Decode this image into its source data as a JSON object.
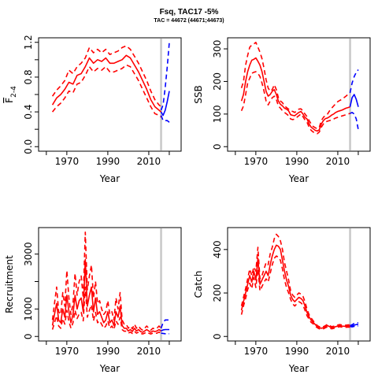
{
  "page": {
    "title": "Fsq, TAC17 -5%",
    "subtitle": "TAC = 44672 (44671;44673)"
  },
  "chart_data": [
    {
      "type": "line",
      "name": "fbar",
      "xlabel": "Year",
      "ylabel_main": "F",
      "ylabel_sub": "2-4",
      "xlim": [
        1959,
        2023
      ],
      "ylim": [
        0,
        1.2
      ],
      "xticks": [
        1970,
        1990,
        2010
      ],
      "yticks": [
        0.0,
        0.4,
        0.8,
        1.2
      ],
      "ytick_labels": [
        "0.0",
        "0.4",
        "0.8",
        "1.2"
      ],
      "vline_x": 2016,
      "colors": {
        "history": "#ff0000",
        "projection": "#0000ff",
        "vline": "#c8c8c8"
      },
      "history": {
        "x": [
          1963,
          1965,
          1967,
          1969,
          1971,
          1973,
          1975,
          1977,
          1979,
          1981,
          1983,
          1985,
          1987,
          1989,
          1991,
          1993,
          1995,
          1997,
          1999,
          2001,
          2003,
          2005,
          2007,
          2009,
          2011,
          2013,
          2015,
          2016
        ],
        "mid": [
          0.48,
          0.56,
          0.6,
          0.66,
          0.74,
          0.72,
          0.82,
          0.84,
          0.92,
          1.02,
          0.96,
          1.0,
          0.98,
          1.02,
          0.96,
          0.96,
          0.98,
          1.0,
          1.05,
          1.02,
          0.94,
          0.86,
          0.76,
          0.66,
          0.54,
          0.46,
          0.42,
          0.4
        ],
        "upper": [
          0.58,
          0.65,
          0.7,
          0.76,
          0.88,
          0.84,
          0.92,
          0.96,
          1.02,
          1.14,
          1.08,
          1.12,
          1.08,
          1.12,
          1.06,
          1.08,
          1.1,
          1.14,
          1.16,
          1.12,
          1.04,
          0.96,
          0.86,
          0.76,
          0.64,
          0.54,
          0.48,
          0.46
        ],
        "lower": [
          0.4,
          0.46,
          0.5,
          0.56,
          0.64,
          0.62,
          0.72,
          0.74,
          0.82,
          0.92,
          0.86,
          0.9,
          0.88,
          0.92,
          0.86,
          0.86,
          0.88,
          0.9,
          0.94,
          0.92,
          0.84,
          0.76,
          0.66,
          0.56,
          0.46,
          0.38,
          0.36,
          0.34
        ]
      },
      "projection": {
        "x": [
          2016,
          2017,
          2018,
          2019,
          2020
        ],
        "mid": [
          0.4,
          0.36,
          0.42,
          0.52,
          0.64
        ],
        "upper": [
          0.42,
          0.48,
          0.68,
          0.92,
          1.2
        ],
        "lower": [
          0.36,
          0.3,
          0.3,
          0.3,
          0.28
        ]
      }
    },
    {
      "type": "line",
      "name": "ssb",
      "xlabel": "Year",
      "ylabel_main": "SSB",
      "xlim": [
        1959,
        2023
      ],
      "ylim": [
        0,
        320
      ],
      "xticks": [
        1970,
        1990,
        2010
      ],
      "yticks": [
        0,
        100,
        200,
        300
      ],
      "ytick_labels": [
        "0",
        "100",
        "200",
        "300"
      ],
      "vline_x": 2016,
      "colors": {
        "history": "#ff0000",
        "projection": "#0000ff",
        "vline": "#c8c8c8"
      },
      "history": {
        "x": [
          1963,
          1964,
          1965,
          1966,
          1967,
          1968,
          1969,
          1970,
          1971,
          1972,
          1973,
          1974,
          1975,
          1976,
          1977,
          1978,
          1979,
          1980,
          1981,
          1982,
          1983,
          1984,
          1985,
          1986,
          1987,
          1988,
          1989,
          1990,
          1991,
          1992,
          1993,
          1994,
          1995,
          1996,
          1997,
          1998,
          1999,
          2000,
          2001,
          2002,
          2003,
          2004,
          2005,
          2006,
          2007,
          2008,
          2009,
          2010,
          2011,
          2012,
          2013,
          2014,
          2015,
          2016
        ],
        "mid": [
          140,
          160,
          200,
          230,
          250,
          265,
          268,
          272,
          262,
          250,
          230,
          200,
          170,
          155,
          160,
          170,
          175,
          160,
          140,
          130,
          125,
          118,
          115,
          110,
          98,
          96,
          95,
          100,
          105,
          108,
          100,
          90,
          85,
          70,
          60,
          55,
          50,
          48,
          52,
          70,
          80,
          86,
          88,
          92,
          97,
          100,
          105,
          108,
          110,
          112,
          115,
          118,
          120,
          122
        ],
        "upper": [
          180,
          200,
          250,
          280,
          305,
          312,
          315,
          320,
          305,
          290,
          270,
          240,
          205,
          180,
          170,
          175,
          190,
          175,
          150,
          140,
          135,
          125,
          120,
          115,
          110,
          108,
          105,
          110,
          115,
          116,
          110,
          100,
          92,
          80,
          70,
          62,
          58,
          55,
          60,
          80,
          90,
          96,
          100,
          110,
          118,
          125,
          132,
          138,
          142,
          145,
          150,
          155,
          160,
          165
        ],
        "lower": [
          110,
          125,
          160,
          195,
          210,
          225,
          228,
          230,
          225,
          215,
          195,
          170,
          140,
          128,
          140,
          150,
          155,
          145,
          125,
          118,
          110,
          105,
          100,
          95,
          85,
          83,
          85,
          90,
          95,
          100,
          92,
          82,
          75,
          60,
          50,
          45,
          42,
          40,
          45,
          60,
          70,
          76,
          78,
          80,
          82,
          85,
          88,
          90,
          92,
          94,
          96,
          98,
          100,
          102
        ]
      },
      "projection": {
        "x": [
          2016,
          2017,
          2018,
          2019,
          2020
        ],
        "mid": [
          122,
          150,
          160,
          145,
          122
        ],
        "upper": [
          165,
          195,
          215,
          228,
          236
        ],
        "lower": [
          102,
          105,
          100,
          85,
          52
        ]
      }
    },
    {
      "type": "line",
      "name": "recruitment",
      "xlabel": "Year",
      "ylabel_main": "Recruitment",
      "xlim": [
        1959,
        2023
      ],
      "ylim": [
        0,
        3800
      ],
      "xticks": [
        1970,
        1990,
        2010
      ],
      "yticks": [
        0,
        1000,
        3000
      ],
      "ytick_labels": [
        "0",
        "1000",
        "3000"
      ],
      "vline_x": 2016,
      "colors": {
        "history": "#ff0000",
        "projection": "#0000ff",
        "vline": "#c8c8c8"
      },
      "history": {
        "x": [
          1963,
          1964,
          1965,
          1966,
          1967,
          1968,
          1969,
          1970,
          1971,
          1972,
          1973,
          1974,
          1975,
          1976,
          1977,
          1978,
          1979,
          1980,
          1981,
          1982,
          1983,
          1984,
          1985,
          1986,
          1987,
          1988,
          1989,
          1990,
          1991,
          1992,
          1993,
          1994,
          1995,
          1996,
          1997,
          1998,
          1999,
          2000,
          2001,
          2002,
          2003,
          2004,
          2005,
          2006,
          2007,
          2008,
          2009,
          2010,
          2011,
          2012,
          2013,
          2014,
          2015,
          2016
        ],
        "mid": [
          400,
          800,
          1200,
          600,
          500,
          1000,
          700,
          1500,
          900,
          500,
          800,
          1500,
          1000,
          1300,
          1400,
          900,
          2800,
          1100,
          1500,
          1800,
          900,
          1400,
          800,
          900,
          700,
          500,
          600,
          900,
          500,
          600,
          400,
          900,
          700,
          1100,
          400,
          300,
          300,
          200,
          250,
          180,
          300,
          200,
          250,
          180,
          150,
          200,
          250,
          200,
          150,
          200,
          180,
          200,
          250,
          200
        ],
        "upper": [
          600,
          1200,
          1800,
          900,
          800,
          1600,
          1100,
          2400,
          1400,
          800,
          1200,
          2300,
          1500,
          2000,
          2200,
          1400,
          3800,
          1700,
          2200,
          2600,
          1400,
          2000,
          1200,
          1300,
          1000,
          800,
          900,
          1300,
          800,
          900,
          600,
          1400,
          1000,
          1600,
          600,
          450,
          450,
          300,
          380,
          280,
          450,
          300,
          380,
          280,
          230,
          300,
          380,
          300,
          230,
          300,
          270,
          300,
          380,
          300
        ],
        "lower": [
          250,
          500,
          750,
          380,
          300,
          650,
          450,
          950,
          550,
          300,
          500,
          950,
          650,
          820,
          880,
          570,
          1800,
          700,
          950,
          1150,
          570,
          880,
          500,
          570,
          440,
          300,
          380,
          570,
          300,
          380,
          250,
          570,
          440,
          700,
          250,
          190,
          190,
          120,
          160,
          110,
          190,
          120,
          160,
          110,
          90,
          120,
          160,
          120,
          90,
          120,
          110,
          120,
          160,
          120
        ]
      },
      "projection": {
        "x": [
          2016,
          2017,
          2018,
          2019,
          2020
        ],
        "mid": [
          200,
          240,
          250,
          250,
          250
        ],
        "upper": [
          300,
          500,
          600,
          600,
          600
        ],
        "lower": [
          120,
          110,
          100,
          100,
          100
        ]
      }
    },
    {
      "type": "line",
      "name": "catch",
      "xlabel": "Year",
      "ylabel_main": "Catch",
      "xlim": [
        1959,
        2023
      ],
      "ylim": [
        0,
        480
      ],
      "xticks": [
        1970,
        1990,
        2010
      ],
      "yticks": [
        0,
        200,
        400
      ],
      "ytick_labels": [
        "0",
        "200",
        "400"
      ],
      "vline_x": 2016,
      "colors": {
        "history": "#ff0000",
        "projection": "#0000ff",
        "vline": "#c8c8c8"
      },
      "history": {
        "x": [
          1963,
          1964,
          1965,
          1966,
          1967,
          1968,
          1969,
          1970,
          1971,
          1972,
          1973,
          1974,
          1975,
          1976,
          1977,
          1978,
          1979,
          1980,
          1981,
          1982,
          1983,
          1984,
          1985,
          1986,
          1987,
          1988,
          1989,
          1990,
          1991,
          1992,
          1993,
          1994,
          1995,
          1996,
          1997,
          1998,
          1999,
          2000,
          2001,
          2002,
          2003,
          2004,
          2005,
          2006,
          2007,
          2008,
          2009,
          2010,
          2011,
          2012,
          2013,
          2014,
          2015,
          2016
        ],
        "mid": [
          120,
          160,
          200,
          240,
          280,
          250,
          300,
          260,
          360,
          240,
          260,
          280,
          300,
          280,
          330,
          370,
          400,
          420,
          415,
          400,
          350,
          300,
          260,
          230,
          190,
          170,
          160,
          170,
          180,
          175,
          165,
          140,
          110,
          90,
          75,
          65,
          55,
          45,
          40,
          38,
          40,
          45,
          50,
          45,
          40,
          42,
          45,
          48,
          50,
          48,
          47,
          47,
          48,
          48
        ],
        "upper": [
          140,
          180,
          220,
          265,
          310,
          280,
          320,
          300,
          410,
          265,
          280,
          310,
          340,
          330,
          380,
          410,
          450,
          470,
          460,
          440,
          400,
          340,
          300,
          260,
          210,
          190,
          180,
          190,
          200,
          195,
          185,
          160,
          125,
          100,
          85,
          72,
          62,
          50,
          45,
          42,
          45,
          50,
          56,
          50,
          45,
          47,
          50,
          53,
          55,
          53,
          52,
          52,
          53,
          53
        ],
        "lower": [
          100,
          140,
          175,
          215,
          245,
          220,
          270,
          225,
          310,
          210,
          230,
          250,
          265,
          250,
          290,
          330,
          360,
          370,
          365,
          350,
          310,
          260,
          225,
          200,
          170,
          150,
          140,
          150,
          160,
          155,
          145,
          120,
          95,
          80,
          65,
          58,
          48,
          40,
          35,
          34,
          35,
          40,
          44,
          40,
          35,
          37,
          40,
          43,
          45,
          43,
          42,
          42,
          43,
          43
        ]
      },
      "projection": {
        "x": [
          2016,
          2017,
          2018,
          2019,
          2020
        ],
        "mid": [
          48,
          48,
          52,
          55,
          55
        ],
        "upper": [
          50,
          54,
          60,
          62,
          63
        ],
        "lower": [
          46,
          44,
          46,
          48,
          48
        ]
      }
    }
  ]
}
